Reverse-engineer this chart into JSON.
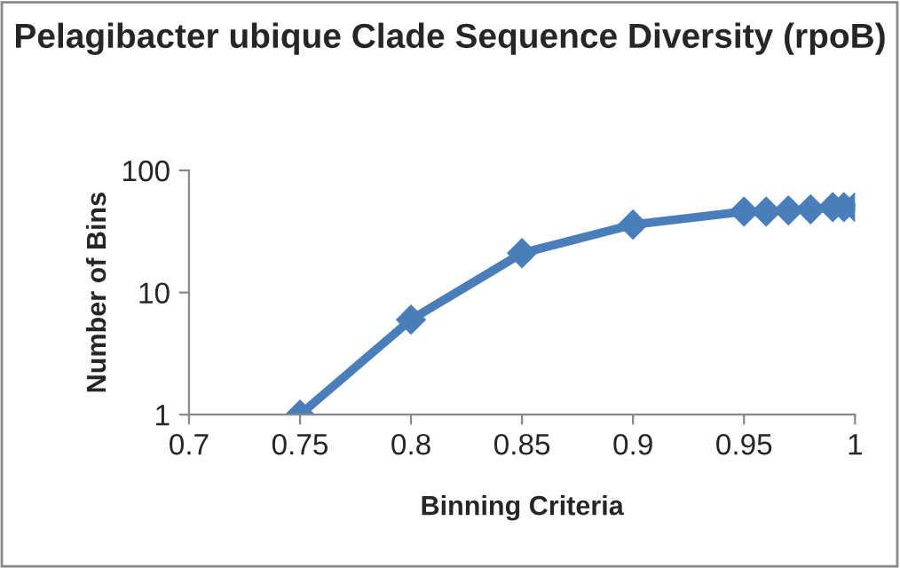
{
  "chart_data": {
    "type": "line",
    "title": "Pelagibacter ubique Clade Sequence Diversity (rpoB)",
    "xlabel": "Binning Criteria",
    "ylabel": "Number of Bins",
    "x": [
      0.75,
      0.8,
      0.85,
      0.9,
      0.95,
      0.96,
      0.97,
      0.98,
      0.99,
      0.995,
      1
    ],
    "series": [
      {
        "color": "#4a7ebb",
        "values": [
          1,
          6,
          21,
          36,
          46,
          46,
          47,
          48,
          50,
          50,
          50
        ]
      }
    ],
    "log": "y",
    "xlim": [
      0.7,
      1
    ],
    "xticks": [
      0.7,
      0.75,
      0.8,
      0.85,
      0.9,
      0.95,
      1
    ],
    "ylim": [
      1,
      100
    ],
    "yticks": [
      1,
      10,
      100
    ],
    "grid": false,
    "legend": false,
    "marker": "diamond",
    "line_style": "solid"
  }
}
